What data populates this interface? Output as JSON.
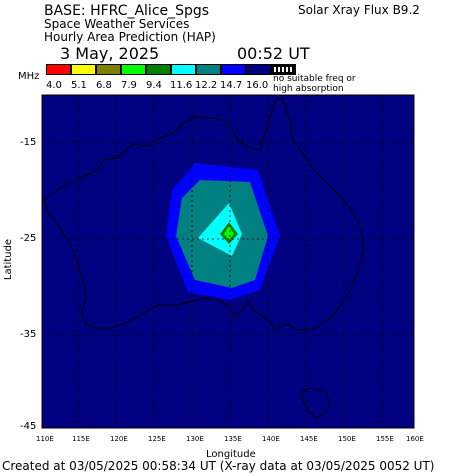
{
  "header": {
    "base": "BASE: HFRC_Alice_Spgs",
    "line2": "Space Weather Services",
    "line3": "Hourly Area Prediction (HAP)",
    "date": "3 May, 2025",
    "time": "00:52 UT",
    "flux": "Solar Xray Flux B9.2"
  },
  "scale": {
    "unit": "MHz",
    "labels": [
      "4.0",
      "5.1",
      "6.8",
      "7.9",
      "9.4",
      "11.6",
      "12.2",
      "14.7",
      "16.0"
    ],
    "colors": [
      "#ff0000",
      "#ffff00",
      "#808000",
      "#00ff00",
      "#008000",
      "#00ffff",
      "#008080",
      "#0000ff",
      "#000080"
    ],
    "note_line1": "no suitable freq or",
    "note_line2": "high absorption"
  },
  "map": {
    "ylabel": "Latitude",
    "xlabel": "Longitude",
    "y_ticks": [
      "-15",
      "-25",
      "-35",
      "-45"
    ],
    "x_ticks": [
      "110E",
      "115E",
      "120E",
      "125E",
      "130E",
      "135E",
      "140E",
      "145E",
      "150E",
      "155E",
      "160E"
    ],
    "background_color": "#000080"
  },
  "footer": {
    "created": "Created at 03/05/2025 00:58:34 UT (X-ray data at 03/05/2025 0052 UT)"
  }
}
